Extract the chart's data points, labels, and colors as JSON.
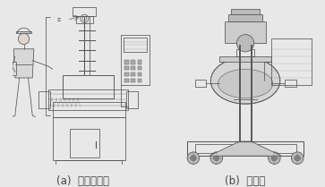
{
  "background_color": "#e8e8e8",
  "fig_width": 3.63,
  "fig_height": 2.09,
  "dpi": 100,
  "label_a": "(a)  시험중자기",
  "label_b": "(b)  혼련기",
  "label_fontsize": 8.5,
  "label_color": "#444444",
  "line_color": "#555555",
  "line_width": 0.55,
  "border_color": "#999999"
}
